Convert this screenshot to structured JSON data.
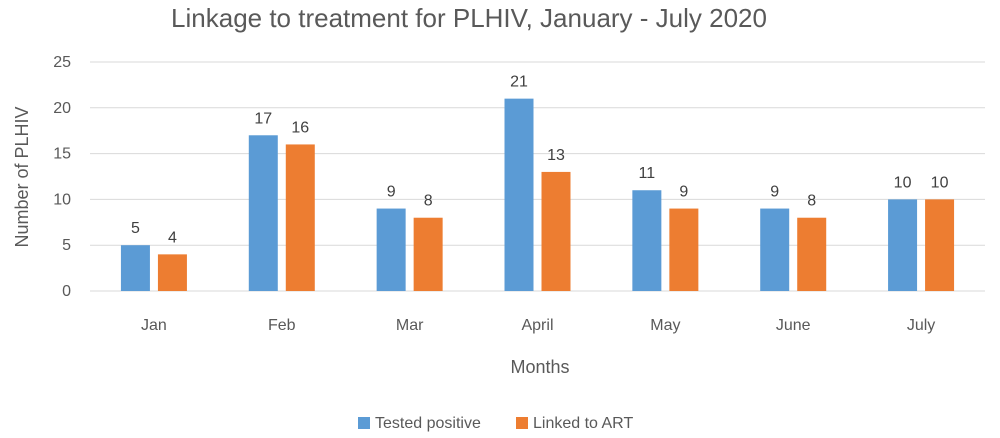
{
  "chart_data": {
    "type": "bar",
    "title": "Linkage to treatment for PLHIV, January  - July 2020",
    "xlabel": "Months",
    "ylabel": "Number of PLHIV",
    "categories": [
      "Jan",
      "Feb",
      "Mar",
      "April",
      "May",
      "June",
      "July"
    ],
    "series": [
      {
        "name": "Tested positive",
        "color": "#5b9bd5",
        "values": [
          5,
          17,
          9,
          21,
          11,
          9,
          10
        ]
      },
      {
        "name": "Linked to ART",
        "color": "#ed7d31",
        "values": [
          4,
          16,
          8,
          13,
          9,
          8,
          10
        ]
      }
    ],
    "ylim": [
      0,
      25
    ],
    "yticks": [
      0,
      5,
      10,
      15,
      20,
      25
    ],
    "grid": true,
    "legend": "bottom"
  }
}
